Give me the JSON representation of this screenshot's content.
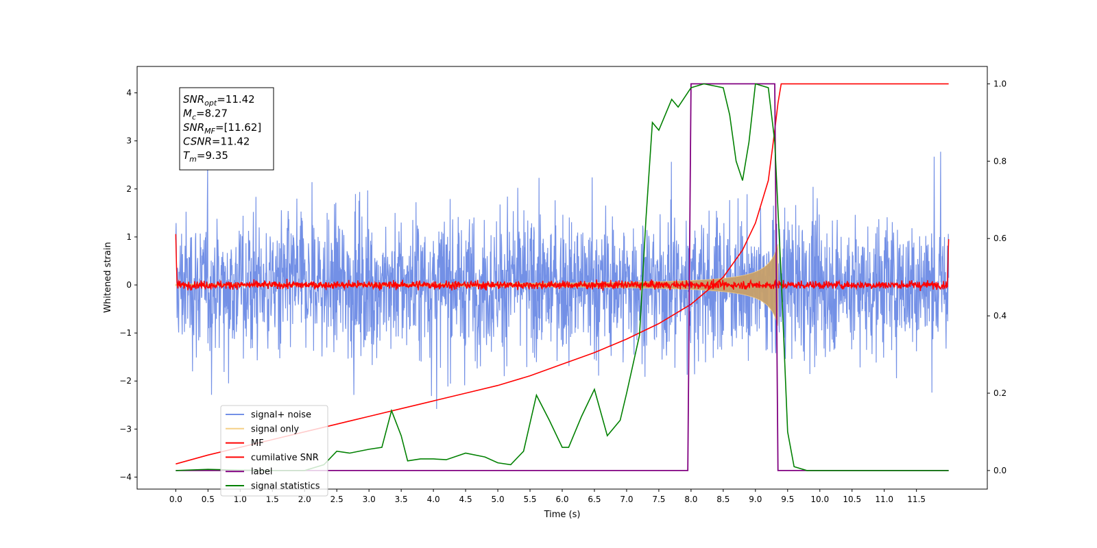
{
  "chart_data": {
    "type": "line",
    "xlabel": "Time (s)",
    "ylabel_left": "Whitened strain",
    "xlim": [
      -0.6,
      12.6
    ],
    "ylim_left": [
      -4.25,
      4.55
    ],
    "ylim_right": [
      -0.048,
      1.045
    ],
    "x_ticks": [
      "0.0",
      "0.5",
      "1.0",
      "1.5",
      "2.0",
      "2.5",
      "3.0",
      "3.5",
      "4.0",
      "4.5",
      "5.0",
      "5.5",
      "6.0",
      "6.5",
      "7.0",
      "7.5",
      "8.0",
      "8.5",
      "9.0",
      "9.5",
      "10.0",
      "10.5",
      "11.0",
      "11.5"
    ],
    "y_ticks_left": [
      "−4",
      "−3",
      "−2",
      "−1",
      "0",
      "1",
      "2",
      "3",
      "4"
    ],
    "y_ticks_right": [
      "0.0",
      "0.2",
      "0.4",
      "0.6",
      "0.8",
      "1.0"
    ],
    "grid": false,
    "legend_position": "lower-left",
    "legend": [
      {
        "label": "signal+ noise",
        "color": "#7390e6"
      },
      {
        "label": "signal only",
        "color": "#f5cf85"
      },
      {
        "label": "MF",
        "color": "#ff0000"
      },
      {
        "label": "cumilative SNR",
        "color": "#ff0000"
      },
      {
        "label": "label",
        "color": "#800080"
      },
      {
        "label": "signal statistics",
        "color": "#008000"
      }
    ],
    "annotation": [
      {
        "name": "SNR",
        "sub": "opt",
        "value": "=11.42"
      },
      {
        "name": "M",
        "sub": "c",
        "value": "=8.27"
      },
      {
        "name": "SNR",
        "sub": "MF",
        "value": "=[11.62]"
      },
      {
        "name": "CSNR",
        "sub": "",
        "value": "=11.42"
      },
      {
        "name": "T",
        "sub": "m",
        "value": "=9.35"
      }
    ],
    "series": [
      {
        "name": "signal+ noise",
        "axis": "left",
        "kind": "noise",
        "t_range": [
          0.0,
          12.0
        ],
        "typical_range": [
          -2.2,
          2.2
        ],
        "peak_range": [
          -3.8,
          4.15
        ]
      },
      {
        "name": "signal only",
        "axis": "left",
        "kind": "chirp",
        "t_range": [
          0.0,
          9.35
        ],
        "amplitude_at_end": 0.85,
        "amplitude_at_start": 0.02
      },
      {
        "name": "MF",
        "axis": "left",
        "kind": "noise",
        "t_range": [
          0.0,
          12.0
        ],
        "start_value": 1.0,
        "end_value": 0.95,
        "band": [
          -0.2,
          0.2
        ]
      },
      {
        "name": "cumilative SNR",
        "axis": "right",
        "points": [
          [
            0.0,
            0.017
          ],
          [
            0.5,
            0.04
          ],
          [
            1.0,
            0.06
          ],
          [
            1.5,
            0.08
          ],
          [
            2.0,
            0.1
          ],
          [
            2.5,
            0.12
          ],
          [
            3.0,
            0.14
          ],
          [
            3.5,
            0.16
          ],
          [
            4.0,
            0.18
          ],
          [
            4.5,
            0.2
          ],
          [
            5.0,
            0.22
          ],
          [
            5.5,
            0.245
          ],
          [
            6.0,
            0.275
          ],
          [
            6.5,
            0.305
          ],
          [
            7.0,
            0.34
          ],
          [
            7.5,
            0.38
          ],
          [
            8.0,
            0.43
          ],
          [
            8.5,
            0.5
          ],
          [
            8.8,
            0.57
          ],
          [
            9.0,
            0.64
          ],
          [
            9.2,
            0.75
          ],
          [
            9.3,
            0.88
          ],
          [
            9.35,
            0.95
          ],
          [
            9.4,
            1.0
          ],
          [
            12.0,
            1.0
          ]
        ]
      },
      {
        "name": "label",
        "axis": "right",
        "points": [
          [
            0.0,
            0.0
          ],
          [
            7.95,
            0.0
          ],
          [
            8.0,
            1.0
          ],
          [
            9.3,
            1.0
          ],
          [
            9.35,
            0.0
          ],
          [
            12.0,
            0.0
          ]
        ]
      },
      {
        "name": "signal statistics",
        "axis": "right",
        "points": [
          [
            0.0,
            0.0
          ],
          [
            0.5,
            0.003
          ],
          [
            1.0,
            0.001
          ],
          [
            1.5,
            0.0
          ],
          [
            2.0,
            0.0
          ],
          [
            2.3,
            0.015
          ],
          [
            2.5,
            0.05
          ],
          [
            2.7,
            0.045
          ],
          [
            3.0,
            0.055
          ],
          [
            3.2,
            0.06
          ],
          [
            3.35,
            0.155
          ],
          [
            3.5,
            0.09
          ],
          [
            3.6,
            0.025
          ],
          [
            3.8,
            0.03
          ],
          [
            4.0,
            0.03
          ],
          [
            4.2,
            0.028
          ],
          [
            4.5,
            0.045
          ],
          [
            4.8,
            0.035
          ],
          [
            5.0,
            0.02
          ],
          [
            5.2,
            0.015
          ],
          [
            5.4,
            0.05
          ],
          [
            5.6,
            0.195
          ],
          [
            5.8,
            0.13
          ],
          [
            6.0,
            0.06
          ],
          [
            6.1,
            0.06
          ],
          [
            6.3,
            0.14
          ],
          [
            6.5,
            0.21
          ],
          [
            6.7,
            0.09
          ],
          [
            6.9,
            0.13
          ],
          [
            7.0,
            0.2
          ],
          [
            7.2,
            0.35
          ],
          [
            7.3,
            0.65
          ],
          [
            7.4,
            0.9
          ],
          [
            7.5,
            0.88
          ],
          [
            7.6,
            0.92
          ],
          [
            7.7,
            0.96
          ],
          [
            7.8,
            0.94
          ],
          [
            8.0,
            0.99
          ],
          [
            8.2,
            1.0
          ],
          [
            8.5,
            0.99
          ],
          [
            8.6,
            0.92
          ],
          [
            8.7,
            0.8
          ],
          [
            8.8,
            0.75
          ],
          [
            8.9,
            0.85
          ],
          [
            9.0,
            1.0
          ],
          [
            9.2,
            0.99
          ],
          [
            9.3,
            0.85
          ],
          [
            9.4,
            0.5
          ],
          [
            9.5,
            0.1
          ],
          [
            9.6,
            0.01
          ],
          [
            9.8,
            0.0
          ],
          [
            12.0,
            0.0
          ]
        ]
      }
    ]
  }
}
